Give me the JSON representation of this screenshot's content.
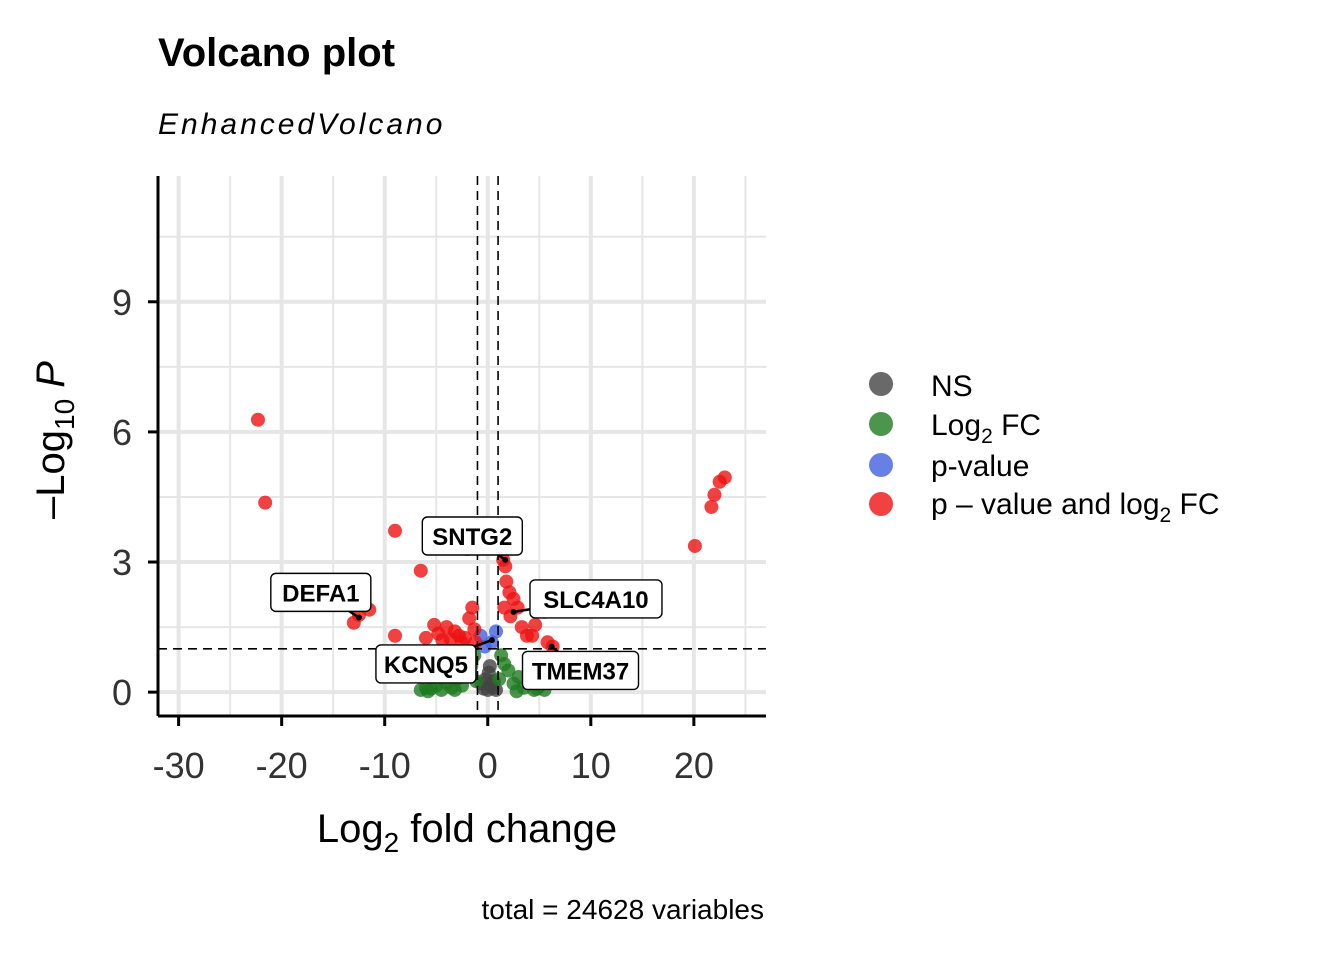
{
  "title": "Volcano plot",
  "subtitle": "EnhancedVolcano",
  "caption": "total = 24628 variables",
  "colors": {
    "NS": "#444444",
    "FC": "#1f7a1f",
    "P": "#4060e0",
    "FC_P": "#ee1111",
    "grid": "#e6e6e6"
  },
  "chart_data": {
    "type": "scatter",
    "title": "Volcano plot",
    "subtitle": "EnhancedVolcano",
    "xlabel": {
      "main": "Log",
      "sub": "2",
      "rest": " fold change"
    },
    "ylabel": {
      "pre": "–Log",
      "sub": "10",
      "post": " P"
    },
    "xlim": [
      -32,
      27
    ],
    "ylim": [
      -0.55,
      11.9
    ],
    "x_ticks": [
      -30,
      -20,
      -10,
      0,
      10,
      20
    ],
    "x_tick_labels": [
      "-30",
      "-20",
      "-10",
      "0",
      "10",
      "20"
    ],
    "y_ticks": [
      0,
      3,
      6,
      9
    ],
    "y_tick_labels": [
      "0",
      "3",
      "6",
      "9"
    ],
    "fc_cutoff": 1,
    "p_cutoff_log10": 1,
    "legend": [
      {
        "key": "NS",
        "label": "NS"
      },
      {
        "key": "FC",
        "label": "Log",
        "sub": "2",
        "rest": " FC"
      },
      {
        "key": "P",
        "label": "p-value"
      },
      {
        "key": "FC_P",
        "label": "p – value and log",
        "sub": "2",
        "rest": " FC"
      }
    ],
    "series": [
      {
        "name": "NS",
        "points": [
          [
            0,
            0.05
          ],
          [
            0.3,
            0.15
          ],
          [
            -0.2,
            0.3
          ],
          [
            0.5,
            0.1
          ],
          [
            -0.4,
            0.08
          ],
          [
            0.1,
            0.45
          ],
          [
            0.6,
            0.25
          ],
          [
            -0.6,
            0.2
          ],
          [
            0.2,
            0.6
          ],
          [
            0.8,
            0.05
          ]
        ]
      },
      {
        "name": "FC",
        "points": [
          [
            -6.5,
            0.05
          ],
          [
            -6,
            0.1
          ],
          [
            -5.5,
            0.08
          ],
          [
            -5,
            0.15
          ],
          [
            -4.5,
            0.05
          ],
          [
            -4,
            0.2
          ],
          [
            -3.5,
            0.1
          ],
          [
            -3,
            0.3
          ],
          [
            -2.5,
            0.15
          ],
          [
            -2,
            0.45
          ],
          [
            -1.6,
            0.6
          ],
          [
            -1.3,
            0.85
          ],
          [
            -1.1,
            0.25
          ],
          [
            1.1,
            0.3
          ],
          [
            1.3,
            0.85
          ],
          [
            1.6,
            0.65
          ],
          [
            2,
            0.5
          ],
          [
            2.5,
            0.2
          ],
          [
            3,
            0.35
          ],
          [
            3.5,
            0.1
          ],
          [
            4,
            0.25
          ],
          [
            4.5,
            0.05
          ],
          [
            5,
            0.15
          ],
          [
            5.5,
            0.05
          ],
          [
            -5.8,
            0.02
          ],
          [
            -3.2,
            0.05
          ],
          [
            2.8,
            0.02
          ],
          [
            4.8,
            0.08
          ]
        ]
      },
      {
        "name": "p-value",
        "points": [
          [
            -0.7,
            1.3
          ],
          [
            -0.3,
            1.05
          ],
          [
            0.4,
            1.15
          ],
          [
            0.8,
            1.4
          ]
        ]
      },
      {
        "name": "p – value and log2 FC",
        "points": [
          [
            -22.3,
            6.28
          ],
          [
            -21.6,
            4.37
          ],
          [
            -9,
            3.72
          ],
          [
            -6.5,
            2.8
          ],
          [
            -13,
            1.6
          ],
          [
            -12.5,
            1.78
          ],
          [
            -11.5,
            1.9
          ],
          [
            -9,
            1.3
          ],
          [
            -6,
            1.25
          ],
          [
            -5.2,
            1.55
          ],
          [
            -4.8,
            1.35
          ],
          [
            -4.4,
            1.2
          ],
          [
            -4,
            1.5
          ],
          [
            -3.6,
            1.22
          ],
          [
            -3.2,
            1.4
          ],
          [
            -2.8,
            1.3
          ],
          [
            -2.5,
            1.15
          ],
          [
            -2.2,
            1.25
          ],
          [
            -1.8,
            1.7
          ],
          [
            -1.5,
            1.95
          ],
          [
            -1.3,
            1.45
          ],
          [
            -1.2,
            1.15
          ],
          [
            -2,
            3.3
          ],
          [
            1.3,
            3.3
          ],
          [
            1.5,
            3.05
          ],
          [
            1.7,
            2.9
          ],
          [
            1.8,
            2.55
          ],
          [
            2.1,
            2.3
          ],
          [
            2.5,
            2.15
          ],
          [
            2.2,
            1.75
          ],
          [
            1.6,
            1.95
          ],
          [
            2.9,
            1.95
          ],
          [
            3.3,
            1.5
          ],
          [
            3.8,
            1.3
          ],
          [
            4.3,
            1.3
          ],
          [
            4.6,
            1.55
          ],
          [
            5.5,
            1.85
          ],
          [
            5.8,
            1.15
          ],
          [
            6.3,
            1.05
          ],
          [
            20.1,
            3.37
          ],
          [
            21.7,
            4.27
          ],
          [
            22,
            4.55
          ],
          [
            22.5,
            4.85
          ],
          [
            23,
            4.95
          ]
        ]
      }
    ],
    "labels": [
      {
        "text": "SNTG2",
        "x": 1.7,
        "y": 3.05,
        "lx": -1.5,
        "ly": 3.6
      },
      {
        "text": "DEFA1",
        "x": -12.5,
        "y": 1.72,
        "lx": -16.2,
        "ly": 2.3
      },
      {
        "text": "SLC4A10",
        "x": 2.5,
        "y": 1.85,
        "lx": 10.5,
        "ly": 2.15
      },
      {
        "text": "KCNQ5",
        "x": 0.4,
        "y": 1.2,
        "lx": -6,
        "ly": 0.65
      },
      {
        "text": "TMEM37",
        "x": 6.2,
        "y": 1.05,
        "lx": 9,
        "ly": 0.5
      }
    ]
  }
}
